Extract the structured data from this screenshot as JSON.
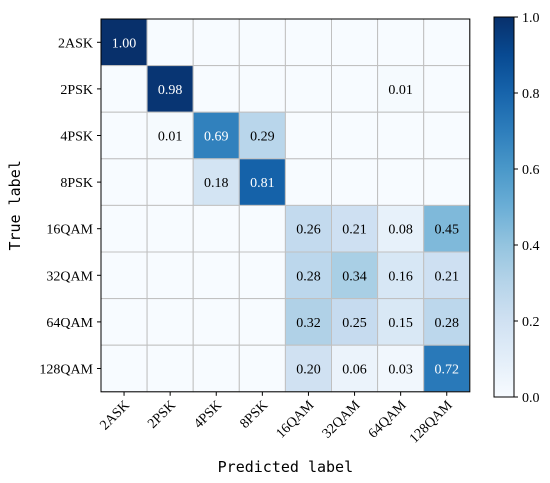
{
  "chart_data": {
    "type": "heatmap",
    "title": "",
    "xlabel": "Predicted label",
    "ylabel": "True label",
    "categories": [
      "2ASK",
      "2PSK",
      "4PSK",
      "8PSK",
      "16QAM",
      "32QAM",
      "64QAM",
      "128QAM"
    ],
    "values": [
      [
        1.0,
        null,
        null,
        null,
        null,
        null,
        null,
        null
      ],
      [
        null,
        0.98,
        null,
        null,
        null,
        null,
        0.01,
        null
      ],
      [
        null,
        0.01,
        0.69,
        0.29,
        null,
        null,
        null,
        null
      ],
      [
        null,
        null,
        0.18,
        0.81,
        null,
        null,
        null,
        null
      ],
      [
        null,
        null,
        null,
        null,
        0.26,
        0.21,
        0.08,
        0.45
      ],
      [
        null,
        null,
        null,
        null,
        0.28,
        0.34,
        0.16,
        0.21
      ],
      [
        null,
        null,
        null,
        null,
        0.32,
        0.25,
        0.15,
        0.28
      ],
      [
        null,
        null,
        null,
        null,
        0.2,
        0.06,
        0.03,
        0.72
      ]
    ],
    "colorbar": {
      "range": [
        0.0,
        1.0
      ],
      "ticks": [
        "0.0",
        "0.2",
        "0.4",
        "0.6",
        "0.8",
        "1.0"
      ],
      "colormap": "Blues"
    },
    "grid": true
  }
}
